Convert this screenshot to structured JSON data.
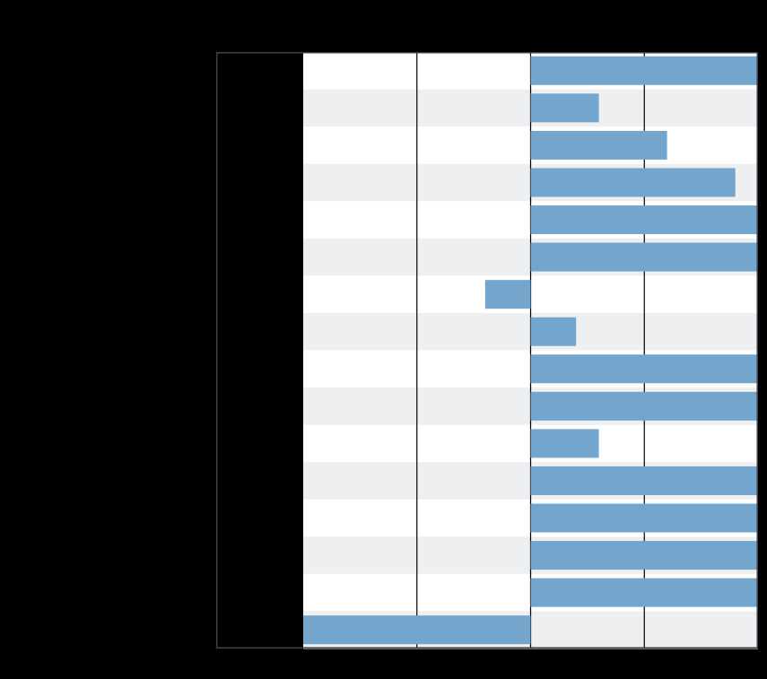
{
  "chart_data": {
    "type": "bar",
    "orientation": "horizontal",
    "title": "",
    "xlabel": "",
    "ylabel": "",
    "categories": [
      "",
      "",
      "",
      "",
      "",
      "",
      "",
      "",
      "",
      "",
      "",
      "",
      "",
      "",
      "",
      ""
    ],
    "values": [
      20,
      6,
      12,
      18,
      20,
      20,
      -4,
      4,
      20,
      20,
      6,
      20,
      20,
      20,
      20,
      -20
    ],
    "xlim": [
      -20,
      20
    ],
    "x_gridlines": [
      -10,
      0,
      10
    ],
    "grid": true,
    "row_banding": true,
    "legend": "none",
    "colors": {
      "bar": "#74a5cd",
      "band_light": "#ffffff",
      "band_gray": "#eeeff1",
      "gridline": "#000000",
      "frame": "#3d3f4b",
      "background": "#000000"
    }
  }
}
